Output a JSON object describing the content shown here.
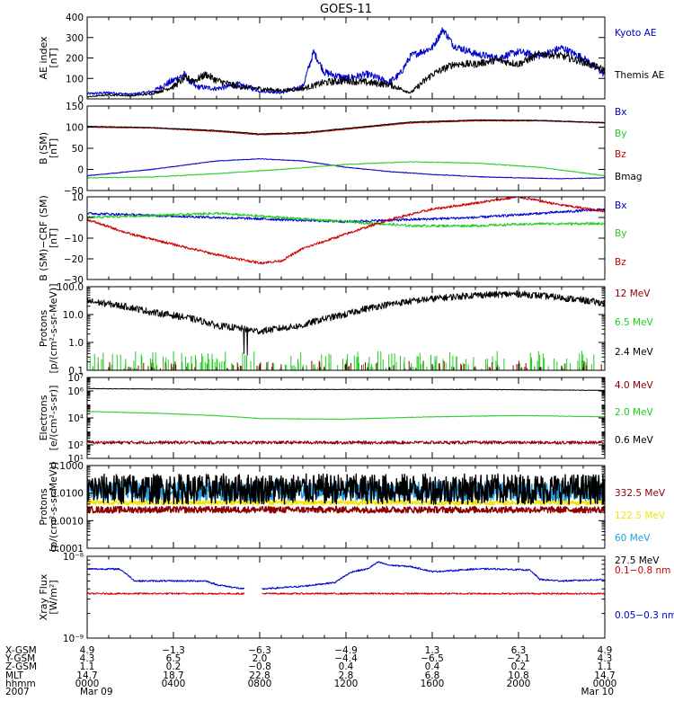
{
  "title": "GOES-11",
  "colors": {
    "black": "#000000",
    "blue": "#0000cc",
    "red": "#cc0000",
    "green": "#22cc22",
    "darkred": "#8b0000",
    "cyan": "#1ea0e6",
    "yellow": "#f2e600",
    "axis": "#000000"
  },
  "chart_data": [
    {
      "type": "line",
      "id": "ae",
      "ylabel": "AE index\n[nT]",
      "ylim": [
        0,
        400
      ],
      "ytick_values": [
        0,
        100,
        200,
        300,
        400
      ],
      "ytick_labels": [
        "0",
        "100",
        "200",
        "300",
        "400"
      ],
      "series": [
        {
          "name": "Kyoto AE",
          "color": "#0000cc",
          "profile": [
            [
              0,
              25
            ],
            [
              1,
              30
            ],
            [
              2,
              22
            ],
            [
              3,
              35
            ],
            [
              4,
              90
            ],
            [
              4.5,
              120
            ],
            [
              5,
              60
            ],
            [
              6,
              50
            ],
            [
              7,
              70
            ],
            [
              8,
              40
            ],
            [
              9,
              30
            ],
            [
              10,
              60
            ],
            [
              10.5,
              230
            ],
            [
              11,
              130
            ],
            [
              12,
              100
            ],
            [
              13,
              120
            ],
            [
              14,
              80
            ],
            [
              14.5,
              120
            ],
            [
              15,
              210
            ],
            [
              16,
              250
            ],
            [
              16.5,
              340
            ],
            [
              17,
              260
            ],
            [
              18,
              220
            ],
            [
              19,
              200
            ],
            [
              20,
              230
            ],
            [
              21,
              210
            ],
            [
              22,
              250
            ],
            [
              23,
              200
            ],
            [
              24,
              120
            ]
          ]
        },
        {
          "name": "Themis AE",
          "color": "#000000",
          "profile": [
            [
              0,
              10
            ],
            [
              1,
              20
            ],
            [
              2,
              15
            ],
            [
              3,
              25
            ],
            [
              4,
              60
            ],
            [
              4.5,
              100
            ],
            [
              5,
              90
            ],
            [
              5.5,
              120
            ],
            [
              6,
              90
            ],
            [
              7,
              60
            ],
            [
              8,
              50
            ],
            [
              9,
              40
            ],
            [
              10,
              50
            ],
            [
              11,
              80
            ],
            [
              12,
              90
            ],
            [
              13,
              80
            ],
            [
              14,
              70
            ],
            [
              15,
              30
            ],
            [
              16,
              120
            ],
            [
              17,
              170
            ],
            [
              18,
              170
            ],
            [
              19,
              190
            ],
            [
              20,
              170
            ],
            [
              21,
              220
            ],
            [
              22,
              210
            ],
            [
              23,
              180
            ],
            [
              24,
              140
            ]
          ]
        }
      ]
    },
    {
      "type": "line",
      "id": "bsm",
      "ylabel": "B (SM)\n[nT]",
      "ylim": [
        -50,
        150
      ],
      "ytick_values": [
        -50,
        0,
        50,
        100,
        150
      ],
      "ytick_labels": [
        "−50",
        "0",
        "50",
        "100",
        "150"
      ],
      "series": [
        {
          "name": "Bx",
          "color": "#0000cc",
          "profile": [
            [
              0,
              -15
            ],
            [
              3,
              0
            ],
            [
              6,
              20
            ],
            [
              8,
              25
            ],
            [
              10,
              20
            ],
            [
              12,
              5
            ],
            [
              14,
              -5
            ],
            [
              16,
              -12
            ],
            [
              18,
              -17
            ],
            [
              20,
              -20
            ],
            [
              22,
              -22
            ],
            [
              24,
              -20
            ]
          ]
        },
        {
          "name": "By",
          "color": "#22cc22",
          "profile": [
            [
              0,
              -20
            ],
            [
              3,
              -18
            ],
            [
              6,
              -10
            ],
            [
              9,
              0
            ],
            [
              12,
              12
            ],
            [
              15,
              18
            ],
            [
              18,
              15
            ],
            [
              21,
              5
            ],
            [
              24,
              -15
            ]
          ]
        },
        {
          "name": "Bz",
          "color": "#cc0000",
          "profile": [
            [
              0,
              100
            ],
            [
              3,
              98
            ],
            [
              6,
              90
            ],
            [
              8,
              82
            ],
            [
              10,
              85
            ],
            [
              12,
              95
            ],
            [
              15,
              110
            ],
            [
              18,
              115
            ],
            [
              21,
              115
            ],
            [
              24,
              110
            ]
          ]
        },
        {
          "name": "Bmag",
          "color": "#000000",
          "profile": [
            [
              0,
              102
            ],
            [
              3,
              99
            ],
            [
              6,
              92
            ],
            [
              8,
              84
            ],
            [
              10,
              87
            ],
            [
              12,
              97
            ],
            [
              15,
              112
            ],
            [
              18,
              117
            ],
            [
              21,
              116
            ],
            [
              24,
              111
            ]
          ]
        }
      ]
    },
    {
      "type": "line",
      "id": "bdiff",
      "ylabel": "B (SM)−CRF (SM)\n[nT]",
      "ylim": [
        -30,
        10
      ],
      "ytick_values": [
        -30,
        -20,
        -10,
        0,
        10
      ],
      "ytick_labels": [
        "−30",
        "−20",
        "−10",
        "0",
        "10"
      ],
      "series": [
        {
          "name": "Bx",
          "color": "#0000cc",
          "profile": [
            [
              0,
              2
            ],
            [
              3,
              1
            ],
            [
              6,
              0
            ],
            [
              9,
              -1
            ],
            [
              12,
              -2
            ],
            [
              15,
              -1
            ],
            [
              18,
              0
            ],
            [
              21,
              2
            ],
            [
              24,
              4
            ]
          ]
        },
        {
          "name": "By",
          "color": "#22cc22",
          "profile": [
            [
              0,
              0
            ],
            [
              3,
              1
            ],
            [
              6,
              2
            ],
            [
              9,
              0
            ],
            [
              12,
              -2
            ],
            [
              15,
              -4
            ],
            [
              18,
              -4
            ],
            [
              21,
              -3
            ],
            [
              24,
              -3
            ]
          ]
        },
        {
          "name": "Bz",
          "color": "#cc0000",
          "profile": [
            [
              0,
              -1
            ],
            [
              2,
              -8
            ],
            [
              4,
              -13
            ],
            [
              6,
              -18
            ],
            [
              8,
              -22
            ],
            [
              9,
              -21
            ],
            [
              10,
              -15
            ],
            [
              12,
              -8
            ],
            [
              14,
              -1
            ],
            [
              16,
              4
            ],
            [
              18,
              7
            ],
            [
              20,
              10
            ],
            [
              21,
              8
            ],
            [
              22,
              6
            ],
            [
              24,
              3
            ]
          ]
        }
      ]
    },
    {
      "type": "line",
      "id": "protons_hi",
      "log": true,
      "ylabel": "Protons\n[p/(cm²-s-sr-MeV)]",
      "ylim": [
        0.1,
        100
      ],
      "ytick_values": [
        0.1,
        1,
        10,
        100
      ],
      "ytick_labels": [
        "0.1",
        "1.0",
        "10.0",
        "100.0"
      ],
      "series": [
        {
          "name": "12 MeV",
          "color": "#8b0000",
          "profile": [
            [
              0,
              0.12
            ],
            [
              24,
              0.12
            ]
          ]
        },
        {
          "name": "6.5 MeV",
          "color": "#22cc22",
          "profile": [
            [
              0,
              0.15
            ],
            [
              24,
              0.15
            ]
          ]
        },
        {
          "name": "2.4 MeV",
          "color": "#000000",
          "profile": [
            [
              0,
              30
            ],
            [
              3,
              12
            ],
            [
              6,
              4
            ],
            [
              8,
              2.5
            ],
            [
              10,
              4
            ],
            [
              12,
              10
            ],
            [
              15,
              30
            ],
            [
              18,
              50
            ],
            [
              20,
              55
            ],
            [
              22,
              40
            ],
            [
              24,
              25
            ]
          ]
        }
      ]
    },
    {
      "type": "line",
      "id": "electrons",
      "log": true,
      "ylabel": "Electrons\n[e/(cm²-s-sr)]",
      "ylim": [
        10,
        10000000
      ],
      "ytick_values": [
        10,
        100,
        10000,
        1000000,
        10000000
      ],
      "ytick_labels": [
        "10¹",
        "10²",
        "10⁴",
        "10⁶",
        "10⁷"
      ],
      "series": [
        {
          "name": "4.0 MeV",
          "color": "#8b0000",
          "profile": [
            [
              0,
              150
            ],
            [
              24,
              150
            ]
          ]
        },
        {
          "name": "2.0 MeV",
          "color": "#22cc22",
          "profile": [
            [
              0,
              30000
            ],
            [
              4,
              20000
            ],
            [
              8,
              9000
            ],
            [
              12,
              8000
            ],
            [
              16,
              12000
            ],
            [
              20,
              15000
            ],
            [
              24,
              12000
            ]
          ]
        },
        {
          "name": "0.6 MeV",
          "color": "#000000",
          "profile": [
            [
              0,
              1500000
            ],
            [
              6,
              1300000
            ],
            [
              12,
              1300000
            ],
            [
              18,
              1300000
            ],
            [
              24,
              1100000
            ]
          ]
        }
      ]
    },
    {
      "type": "line",
      "id": "protons_lo",
      "log": true,
      "ylabel": "Protons\n[p/(cm²-s-sr-MeV)]",
      "ylim": [
        0.0001,
        0.1
      ],
      "ytick_values": [
        0.0001,
        0.001,
        0.01,
        0.1
      ],
      "ytick_labels": [
        "0.0001",
        "0.0010",
        "0.0100",
        "0.1000"
      ],
      "series": [
        {
          "name": "332.5 MeV",
          "color": "#8b0000",
          "profile": [
            [
              0,
              0.0025
            ],
            [
              24,
              0.0025
            ]
          ]
        },
        {
          "name": "122.5 MeV",
          "color": "#f2e600",
          "profile": [
            [
              0,
              0.0045
            ],
            [
              24,
              0.0045
            ]
          ]
        },
        {
          "name": "60 MeV",
          "color": "#1ea0e6",
          "profile": [
            [
              0,
              0.012
            ],
            [
              24,
              0.012
            ]
          ]
        },
        {
          "name": "27.5 MeV",
          "color": "#000000",
          "profile": [
            [
              0,
              0.014
            ],
            [
              24,
              0.014
            ]
          ]
        }
      ]
    },
    {
      "type": "line",
      "id": "xray",
      "log": true,
      "ylabel": "Xray Flux\n[W/m²]",
      "ylim": [
        1e-09,
        1e-08
      ],
      "ytick_values": [
        1e-09,
        1e-08
      ],
      "ytick_labels": [
        "10⁻⁹",
        "10⁻⁸"
      ],
      "series": [
        {
          "name": "0.1−0.8 nm",
          "color": "#cc0000",
          "gaps": [
            [
              7.3,
              8.1
            ]
          ],
          "profile": [
            [
              0,
              3.5e-09
            ],
            [
              24,
              3.5e-09
            ]
          ]
        },
        {
          "name": "0.05−0.3 nm",
          "color": "#0000cc",
          "gaps": [
            [
              7.3,
              8.1
            ]
          ],
          "profile": [
            [
              0,
              7e-09
            ],
            [
              1.5,
              7e-09
            ],
            [
              2.2,
              5e-09
            ],
            [
              4,
              5e-09
            ],
            [
              5.5,
              5e-09
            ],
            [
              6,
              4.5e-09
            ],
            [
              7.2,
              4e-09
            ],
            [
              8.2,
              4e-09
            ],
            [
              10,
              4.3e-09
            ],
            [
              11.5,
              4.8e-09
            ],
            [
              12.3,
              6.5e-09
            ],
            [
              13,
              7e-09
            ],
            [
              13.5,
              8.5e-09
            ],
            [
              14,
              7.8e-09
            ],
            [
              15,
              7.5e-09
            ],
            [
              16,
              6.5e-09
            ],
            [
              17,
              6.7e-09
            ],
            [
              18,
              7e-09
            ],
            [
              19,
              7e-09
            ],
            [
              20.5,
              6.8e-09
            ],
            [
              21,
              5.2e-09
            ],
            [
              22,
              5e-09
            ],
            [
              24,
              5.2e-09
            ]
          ]
        }
      ]
    }
  ],
  "xaxis": {
    "ticks": [
      {
        "hour": 0,
        "xgsm": "4.9",
        "ygsm": "4.3",
        "zgsm": "1.1",
        "mlt": "14.7",
        "hhmm": "0000",
        "date": "Mar 09"
      },
      {
        "hour": 4,
        "xgsm": "−1.3",
        "ygsm": "6.5",
        "zgsm": "0.2",
        "mlt": "18.7",
        "hhmm": "0400",
        "date": ""
      },
      {
        "hour": 8,
        "xgsm": "−6.3",
        "ygsm": "2.0",
        "zgsm": "−0.8",
        "mlt": "22.8",
        "hhmm": "0800",
        "date": ""
      },
      {
        "hour": 12,
        "xgsm": "−4.9",
        "ygsm": "−4.4",
        "zgsm": "0.4",
        "mlt": "2.8",
        "hhmm": "1200",
        "date": ""
      },
      {
        "hour": 16,
        "xgsm": "1.3",
        "ygsm": "−6.5",
        "zgsm": "0.4",
        "mlt": "6.8",
        "hhmm": "1600",
        "date": ""
      },
      {
        "hour": 20,
        "xgsm": "6.3",
        "ygsm": "−2.1",
        "zgsm": "0.2",
        "mlt": "10.8",
        "hhmm": "2000",
        "date": ""
      },
      {
        "hour": 24,
        "xgsm": "4.9",
        "ygsm": "4.3",
        "zgsm": "1.1",
        "mlt": "14.7",
        "hhmm": "0000",
        "date": "Mar 10"
      }
    ],
    "row_labels": {
      "xgsm": "X-GSM",
      "ygsm": "Y-GSM",
      "zgsm": "Z-GSM",
      "mlt": "MLT",
      "hhmm": "hhmm",
      "year": "2007"
    }
  }
}
